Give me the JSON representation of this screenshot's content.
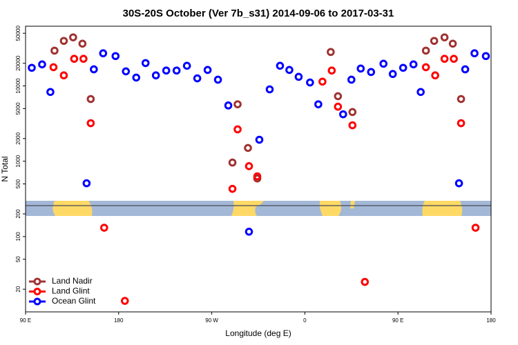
{
  "chart_data": {
    "type": "scatter",
    "title": "30S-20S October (Ver 7b_s31)   2014-09-06 to 2017-03-31",
    "xlabel": "Longitude (deg E)",
    "ylabel": "N Total",
    "log_y": true,
    "legend": "lower left",
    "xlim": [
      90,
      540
    ],
    "ylim": [
      10,
      62000
    ],
    "xticks": [
      {
        "value": 90,
        "label": "90 E"
      },
      180,
      {
        "value": 270,
        "label": "90 W"
      },
      {
        "value": 360,
        "label": "0"
      },
      {
        "value": 450,
        "label": "90 E"
      },
      {
        "value": 540,
        "label": "180"
      }
    ],
    "yticks": [
      20,
      50,
      100,
      200,
      500,
      1000,
      2000,
      5000,
      10000,
      20000,
      50000
    ],
    "series": [
      {
        "name": "Land Nadir",
        "color": "#a03232",
        "x": [
          118,
          127,
          136,
          145,
          153,
          290,
          295,
          305,
          314,
          385,
          392,
          406,
          477,
          485,
          495,
          503,
          511
        ],
        "values": [
          29400,
          39600,
          44100,
          36400,
          6700,
          960,
          5700,
          1500,
          590,
          28200,
          7300,
          4500,
          29400,
          39600,
          44100,
          36400,
          6700
        ]
      },
      {
        "name": "Land Glint",
        "color": "#ff0000",
        "x": [
          117,
          127,
          137,
          146,
          153,
          166,
          186,
          290,
          295,
          306,
          314,
          377,
          386,
          392,
          406,
          418,
          477,
          486,
          495,
          504,
          511,
          525
        ],
        "values": [
          17700,
          13800,
          22900,
          22900,
          3200,
          131,
          14,
          430,
          2650,
          860,
          630,
          11400,
          16000,
          5300,
          3000,
          25,
          17700,
          13800,
          22900,
          22900,
          3200,
          131
        ]
      },
      {
        "name": "Ocean Glint",
        "color": "#0000ff",
        "x": [
          96,
          106,
          114,
          149,
          156,
          165,
          177,
          187,
          197,
          206,
          216,
          226,
          236,
          246,
          256,
          266,
          276,
          286,
          306,
          316,
          326,
          336,
          345,
          354,
          365,
          373,
          397,
          405,
          414,
          424,
          436,
          445,
          455,
          465,
          472,
          509,
          515,
          524,
          535
        ],
        "values": [
          17400,
          19300,
          8300,
          510,
          16600,
          27100,
          24900,
          15600,
          12900,
          20100,
          13800,
          16000,
          16000,
          18500,
          12600,
          16300,
          12100,
          5500,
          116,
          1930,
          9000,
          18500,
          16300,
          13200,
          11100,
          5700,
          4200,
          12100,
          17000,
          15300,
          19700,
          14400,
          17400,
          19300,
          8300,
          510,
          16600,
          27100,
          24900
        ]
      }
    ]
  }
}
